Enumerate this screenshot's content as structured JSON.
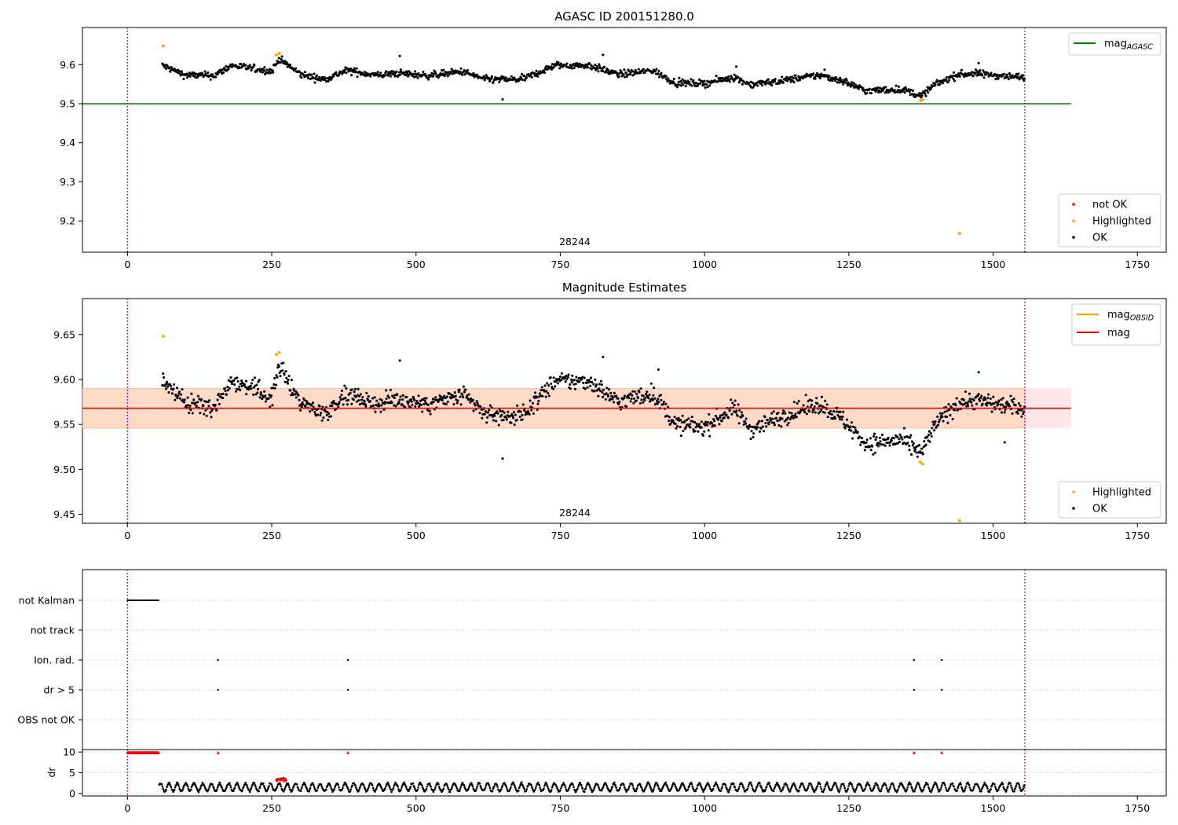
{
  "agasc_label": "AGASC ID",
  "agasc_id": "200151280.0",
  "obsid_label": "28244",
  "x_ticks": [
    0,
    250,
    500,
    750,
    1000,
    1250,
    1500,
    1750
  ],
  "colors": {
    "ok": "#000000",
    "highlighted": "#ffa500",
    "not_ok": "#ff0000",
    "mag_agasc_line": "#008000",
    "mag_line": "#ff0000",
    "mag_obsid_line": "#ffa500",
    "band_inner": "#ffdac8",
    "band_outer": "#ffe4e8",
    "obs_boundary": "#800080",
    "grid": "#b0b0b0"
  },
  "chart_data": [
    {
      "id": "top",
      "type": "scatter",
      "title": "AGASC ID 200151280.0",
      "xlim": [
        -78,
        1800
      ],
      "ylim": [
        9.12,
        9.695
      ],
      "y_ticks": [
        9.2,
        9.3,
        9.4,
        9.5,
        9.6
      ],
      "y_tick_labels": [
        "9.2",
        "9.3",
        "9.4",
        "9.5",
        "9.6"
      ],
      "mag_agasc": 9.5,
      "mag_agasc_xrange": [
        -78,
        1635
      ],
      "obs_boundaries": [
        0,
        1555
      ],
      "obsid_text": "28244",
      "obsid_text_pos": [
        777,
        9.15
      ],
      "highlighted": [
        [
          62,
          9.648
        ],
        [
          258,
          9.625
        ],
        [
          263,
          9.629
        ],
        [
          1374,
          9.508
        ],
        [
          1378,
          9.51
        ],
        [
          1442,
          9.168
        ]
      ],
      "ok_profile": [
        [
          60,
          9.598
        ],
        [
          100,
          9.573
        ],
        [
          150,
          9.572
        ],
        [
          180,
          9.598
        ],
        [
          250,
          9.583
        ],
        [
          262,
          9.615
        ],
        [
          300,
          9.575
        ],
        [
          340,
          9.562
        ],
        [
          380,
          9.585
        ],
        [
          430,
          9.573
        ],
        [
          470,
          9.578
        ],
        [
          520,
          9.572
        ],
        [
          580,
          9.582
        ],
        [
          620,
          9.562
        ],
        [
          680,
          9.562
        ],
        [
          700,
          9.572
        ],
        [
          740,
          9.598
        ],
        [
          800,
          9.598
        ],
        [
          850,
          9.575
        ],
        [
          910,
          9.585
        ],
        [
          950,
          9.553
        ],
        [
          1000,
          9.552
        ],
        [
          1050,
          9.568
        ],
        [
          1080,
          9.549
        ],
        [
          1130,
          9.558
        ],
        [
          1160,
          9.565
        ],
        [
          1200,
          9.573
        ],
        [
          1240,
          9.558
        ],
        [
          1280,
          9.533
        ],
        [
          1340,
          9.537
        ],
        [
          1375,
          9.52
        ],
        [
          1400,
          9.55
        ],
        [
          1440,
          9.575
        ],
        [
          1470,
          9.577
        ],
        [
          1555,
          9.567
        ]
      ],
      "ok_spread": 0.016,
      "ok_outliers": [
        [
          650,
          9.511
        ],
        [
          472,
          9.622
        ],
        [
          824,
          9.625
        ],
        [
          1055,
          9.595
        ],
        [
          1475,
          9.604
        ],
        [
          1208,
          9.587
        ]
      ],
      "legend_top": [
        {
          "label": "mag",
          "sub": "AGASC",
          "kind": "line",
          "color_key": "mag_agasc_line"
        }
      ],
      "legend_bottom": [
        {
          "label": "not OK",
          "kind": "dot",
          "color_key": "not_ok"
        },
        {
          "label": "Highlighted",
          "kind": "dot",
          "color_key": "highlighted"
        },
        {
          "label": "OK",
          "kind": "dot",
          "color_key": "ok"
        }
      ]
    },
    {
      "id": "middle",
      "type": "scatter",
      "title": "Magnitude Estimates",
      "xlim": [
        -78,
        1800
      ],
      "ylim": [
        9.44,
        9.69
      ],
      "y_ticks": [
        9.45,
        9.5,
        9.55,
        9.6,
        9.65
      ],
      "y_tick_labels": [
        "9.45",
        "9.50",
        "9.55",
        "9.60",
        "9.65"
      ],
      "mag": 9.568,
      "mag_xrange": [
        -78,
        1635
      ],
      "band": [
        9.546,
        9.59
      ],
      "band_xrange": [
        -78,
        1635
      ],
      "band_inner_xrange": [
        -78,
        1555
      ],
      "mag_obsid": 9.568,
      "mag_obsid_xrange": [
        -78,
        1555
      ],
      "obs_boundaries": [
        0,
        1555
      ],
      "obsid_text": "28244",
      "obsid_text_pos": [
        777,
        9.447
      ],
      "highlighted": [
        [
          62,
          9.648
        ],
        [
          258,
          9.628
        ],
        [
          263,
          9.63
        ],
        [
          1374,
          9.508
        ],
        [
          1378,
          9.506
        ],
        [
          1442,
          9.443
        ]
      ],
      "ok_profile": [
        [
          60,
          9.6
        ],
        [
          100,
          9.573
        ],
        [
          150,
          9.57
        ],
        [
          180,
          9.6
        ],
        [
          250,
          9.58
        ],
        [
          262,
          9.615
        ],
        [
          300,
          9.575
        ],
        [
          340,
          9.562
        ],
        [
          380,
          9.585
        ],
        [
          430,
          9.573
        ],
        [
          470,
          9.578
        ],
        [
          520,
          9.572
        ],
        [
          580,
          9.582
        ],
        [
          620,
          9.562
        ],
        [
          680,
          9.558
        ],
        [
          700,
          9.572
        ],
        [
          740,
          9.598
        ],
        [
          800,
          9.598
        ],
        [
          850,
          9.575
        ],
        [
          910,
          9.585
        ],
        [
          950,
          9.55
        ],
        [
          1000,
          9.547
        ],
        [
          1050,
          9.568
        ],
        [
          1080,
          9.545
        ],
        [
          1130,
          9.558
        ],
        [
          1160,
          9.565
        ],
        [
          1200,
          9.573
        ],
        [
          1240,
          9.555
        ],
        [
          1280,
          9.528
        ],
        [
          1340,
          9.533
        ],
        [
          1375,
          9.518
        ],
        [
          1400,
          9.55
        ],
        [
          1440,
          9.575
        ],
        [
          1470,
          9.577
        ],
        [
          1555,
          9.567
        ]
      ],
      "ok_spread": 0.018,
      "ok_outliers": [
        [
          650,
          9.512
        ],
        [
          472,
          9.621
        ],
        [
          824,
          9.625
        ],
        [
          920,
          9.611
        ],
        [
          1475,
          9.608
        ],
        [
          1520,
          9.53
        ]
      ],
      "legend_top": [
        {
          "label": "mag",
          "sub": "OBSID",
          "kind": "line",
          "color_key": "mag_obsid_line"
        },
        {
          "label": "mag",
          "sub": "",
          "kind": "line",
          "color_key": "mag_line"
        }
      ],
      "legend_bottom": [
        {
          "label": "Highlighted",
          "kind": "dot",
          "color_key": "highlighted"
        },
        {
          "label": "OK",
          "kind": "dot",
          "color_key": "ok"
        }
      ]
    },
    {
      "id": "flags",
      "type": "scatter",
      "categories": [
        "not Kalman",
        "not track",
        "Ion. rad.",
        "dr > 5",
        "OBS not OK"
      ],
      "xlim": [
        -78,
        1800
      ],
      "obs_boundaries": [
        0,
        1555
      ],
      "not_kalman_xrange": [
        0,
        55
      ],
      "ion_rad_x": [
        157,
        382,
        1363,
        1411
      ],
      "dr5_x": [
        157,
        382,
        1363,
        1411
      ]
    },
    {
      "id": "dr",
      "type": "scatter",
      "ylabel": "dr",
      "xlim": [
        -78,
        1800
      ],
      "ylim": [
        -0.6,
        10.6
      ],
      "y_ticks": [
        0,
        5,
        10
      ],
      "y_tick_labels": [
        "0",
        "5",
        "10"
      ],
      "obs_boundaries": [
        0,
        1555
      ],
      "clipped_xrange": [
        0,
        55
      ],
      "clipped_value": 9.9,
      "clipped_markers_x": [
        157,
        382,
        1363,
        1411
      ],
      "highlighted_xrange": [
        258,
        275
      ],
      "highlighted_value": 3.4,
      "typical_range": [
        0.3,
        2.7
      ],
      "data_xrange": [
        55,
        1555
      ]
    }
  ]
}
